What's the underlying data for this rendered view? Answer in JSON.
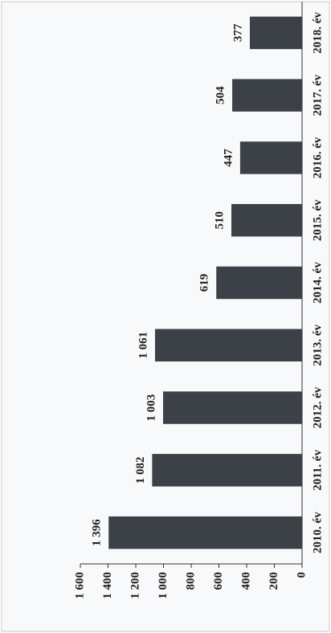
{
  "chart_data": {
    "type": "bar",
    "categories": [
      "2010. év",
      "2011. év",
      "2012. év",
      "2013. év",
      "2014. év",
      "2015. év",
      "2016. év",
      "2017. év",
      "2018. év"
    ],
    "values": [
      1396,
      1082,
      1003,
      1061,
      619,
      510,
      447,
      504,
      377
    ],
    "value_labels": [
      "1 396",
      "1 082",
      "1 003",
      "1 061",
      "619",
      "510",
      "447",
      "504",
      "377"
    ],
    "color": "#3b4147",
    "ylim": [
      0,
      1600
    ],
    "yticks": [
      0,
      200,
      400,
      600,
      800,
      {
        "value": 1000,
        "label": "1 000"
      },
      {
        "value": 1200,
        "label": "1 200"
      },
      {
        "value": 1400,
        "label": "1 400"
      },
      {
        "value": 1600,
        "label": "1 600"
      }
    ],
    "grid": false
  }
}
